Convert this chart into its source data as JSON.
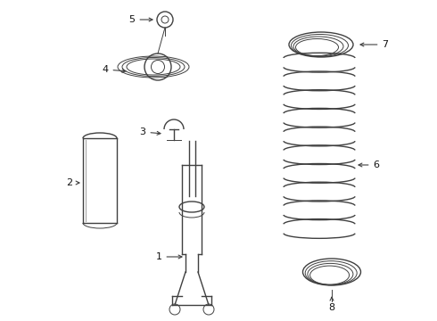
{
  "bg_color": "#ffffff",
  "line_color": "#404040",
  "label_color": "#111111",
  "fig_w": 4.9,
  "fig_h": 3.6,
  "dpi": 100
}
